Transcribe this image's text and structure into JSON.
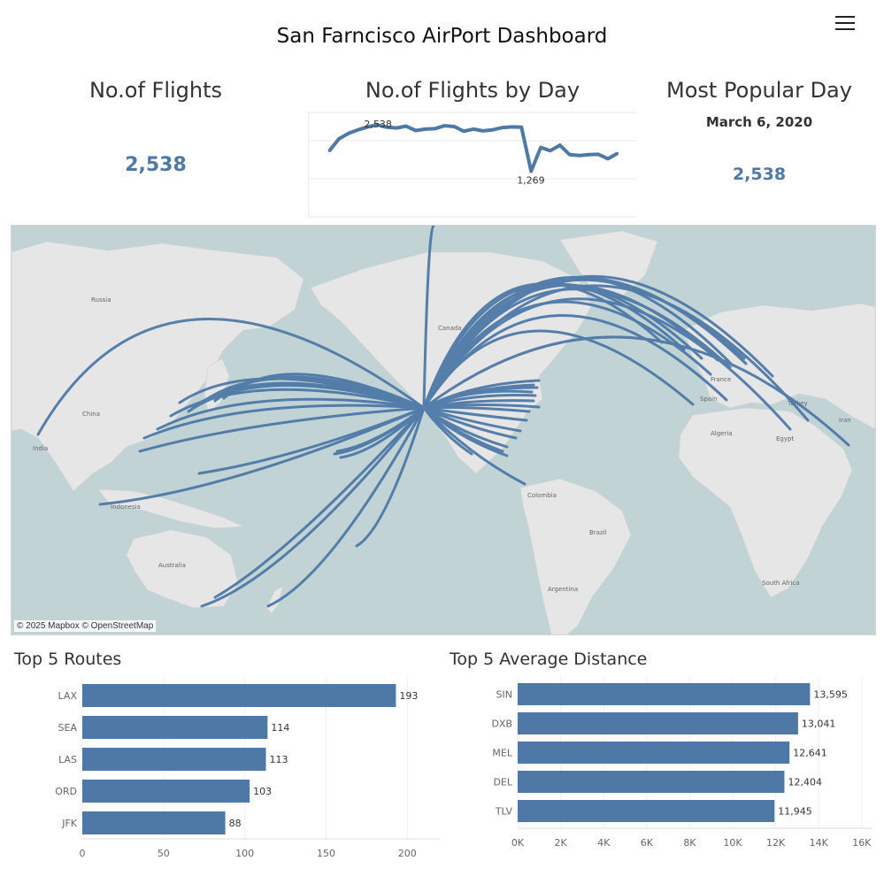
{
  "header": {
    "title": "San Farncisco AirPort Dashboard",
    "menu_icon": "hamburger-menu-icon"
  },
  "kpis": {
    "flights_title": "No.of Flights",
    "flights_value": "2,538",
    "by_day_title": "No.of Flights by Day",
    "popular_title": "Most Popular Day",
    "popular_date": "March 6, 2020",
    "popular_value": "2,538"
  },
  "map": {
    "credit": "© 2025 Mapbox © OpenStreetMap",
    "labels": [
      "Russia",
      "Canada",
      "China",
      "India",
      "Indonesia",
      "Australia",
      "Colombia",
      "Brazil",
      "Argentina",
      "France",
      "Spain",
      "Algeria",
      "Egypt",
      "Turkey",
      "Iran",
      "South Africa"
    ],
    "colors": {
      "water": "#c2d3d6",
      "land": "#e6e6e6",
      "routes": "#4e79a7"
    }
  },
  "chart_data": [
    {
      "type": "line",
      "title": "No.of Flights by Day",
      "values": [
        1820,
        2150,
        2300,
        2400,
        2480,
        2538,
        2470,
        2450,
        2500,
        2380,
        2420,
        2430,
        2510,
        2490,
        2360,
        2420,
        2370,
        2400,
        2460,
        2480,
        2470,
        1269,
        1920,
        1830,
        1980,
        1720,
        1700,
        1720,
        1730,
        1610,
        1760
      ],
      "annotations": [
        {
          "label": "2,538",
          "index": 5
        },
        {
          "label": "1,269",
          "index": 21
        }
      ],
      "ylim": [
        0,
        2900
      ]
    },
    {
      "type": "bar",
      "title": "Top 5 Routes",
      "categories": [
        "LAX",
        "SEA",
        "LAS",
        "ORD",
        "JFK"
      ],
      "values": [
        193,
        114,
        113,
        103,
        88
      ],
      "value_labels": [
        "193",
        "114",
        "113",
        "103",
        "88"
      ],
      "ticks": [
        "0",
        "50",
        "100",
        "150",
        "200"
      ],
      "xlim": [
        0,
        220
      ]
    },
    {
      "type": "bar",
      "title": "Top 5 Average Distance",
      "categories": [
        "SIN",
        "DXB",
        "MEL",
        "DEL",
        "TLV"
      ],
      "values": [
        13595,
        13041,
        12641,
        12404,
        11945
      ],
      "value_labels": [
        "13,595",
        "13,041",
        "12,641",
        "12,404",
        "11,945"
      ],
      "ticks": [
        "0K",
        "2K",
        "4K",
        "6K",
        "8K",
        "10K",
        "12K",
        "14K",
        "16K"
      ],
      "xlim": [
        0,
        16500
      ]
    }
  ]
}
